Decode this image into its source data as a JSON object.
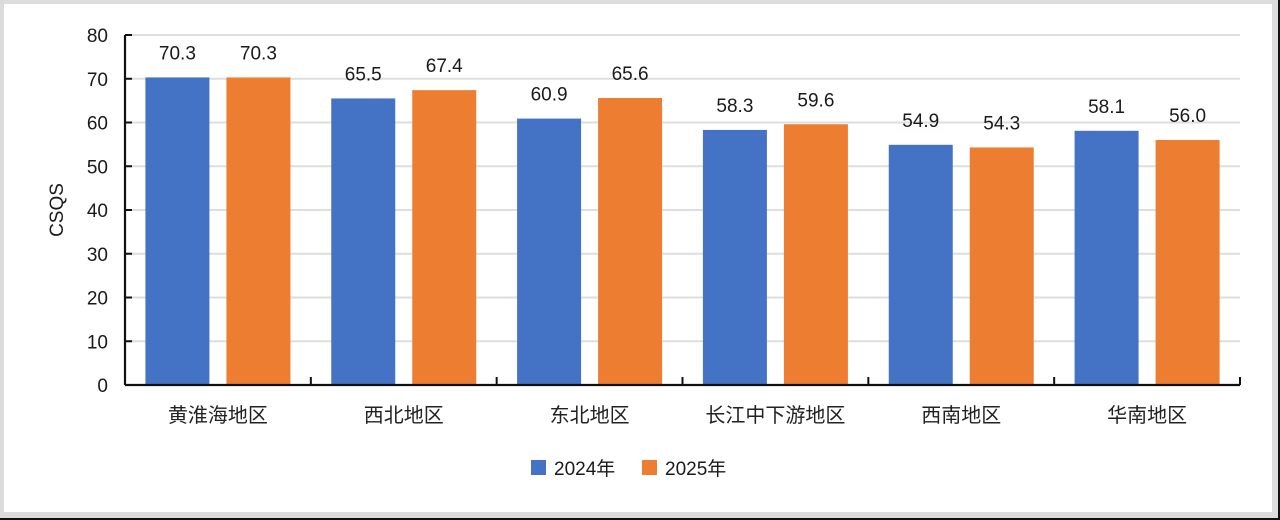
{
  "chart_data": {
    "type": "bar",
    "title": "",
    "xlabel": "",
    "ylabel": "CSQS",
    "ylim": [
      0,
      80
    ],
    "yticks": [
      0,
      10,
      20,
      30,
      40,
      50,
      60,
      70,
      80
    ],
    "grid": true,
    "legend_position": "bottom",
    "categories": [
      "黄淮海地区",
      "西北地区",
      "东北地区",
      "长江中下游地区",
      "西南地区",
      "华南地区"
    ],
    "series": [
      {
        "name": "2024年",
        "color": "#4472C4",
        "values": [
          70.3,
          65.5,
          60.9,
          58.3,
          54.9,
          58.1
        ],
        "labels": [
          "70.3",
          "65.5",
          "60.9",
          "58.3",
          "54.9",
          "58.1"
        ]
      },
      {
        "name": "2025年",
        "color": "#ED7D31",
        "values": [
          70.3,
          67.4,
          65.6,
          59.6,
          54.3,
          56.0
        ],
        "labels": [
          "70.3",
          "67.4",
          "65.6",
          "59.6",
          "54.3",
          "56.0"
        ]
      }
    ]
  }
}
